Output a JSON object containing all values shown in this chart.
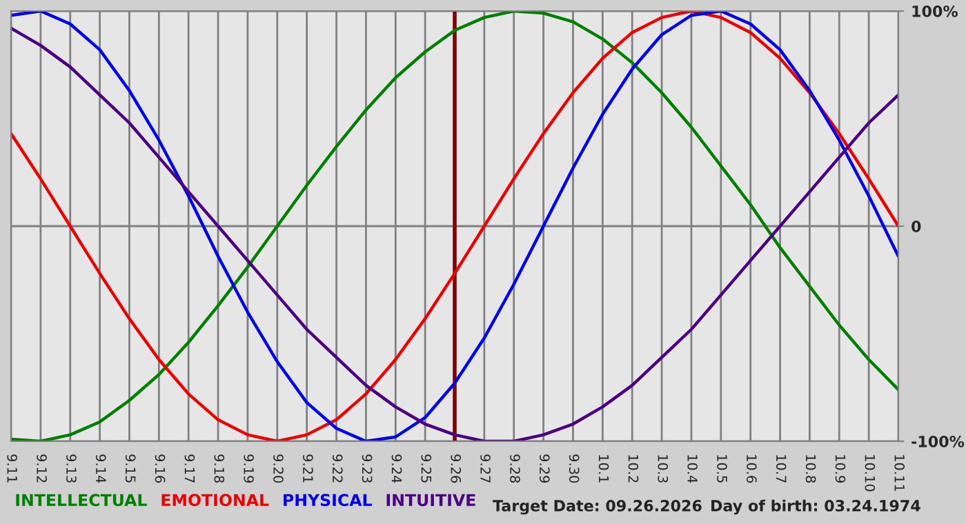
{
  "chart_data": {
    "type": "line",
    "categories": [
      "9.11",
      "9.12",
      "9.13",
      "9.14",
      "9.15",
      "9.16",
      "9.17",
      "9.18",
      "9.19",
      "9.20",
      "9.21",
      "9.22",
      "9.23",
      "9.24",
      "9.25",
      "9.26",
      "9.27",
      "9.28",
      "9.29",
      "9.30",
      "10.1",
      "10.2",
      "10.3",
      "10.4",
      "10.5",
      "10.6",
      "10.7",
      "10.8",
      "10.9",
      "10.10",
      "10.11"
    ],
    "series": [
      {
        "name": "INTELLECTUAL",
        "color": "#008000",
        "values": [
          -99,
          -100,
          -97,
          -91,
          -81,
          -69,
          -54,
          -37,
          -19,
          0,
          19,
          37,
          54,
          69,
          81,
          91,
          97,
          100,
          99,
          95,
          87,
          76,
          62,
          46,
          28,
          10,
          -10,
          -28,
          -46,
          -62,
          -76
        ]
      },
      {
        "name": "EMOTIONAL",
        "color": "#ee0000",
        "values": [
          43,
          22,
          0,
          -22,
          -43,
          -62,
          -78,
          -90,
          -97,
          -100,
          -97,
          -90,
          -78,
          -62,
          -43,
          -22,
          0,
          22,
          43,
          62,
          78,
          90,
          97,
          100,
          97,
          90,
          78,
          62,
          43,
          22,
          0
        ]
      },
      {
        "name": "PHYSICAL",
        "color": "#0000ee",
        "values": [
          98,
          100,
          94,
          82,
          63,
          40,
          14,
          -14,
          -40,
          -63,
          -82,
          -94,
          -100,
          -98,
          -89,
          -73,
          -52,
          -27,
          0,
          27,
          52,
          73,
          89,
          98,
          100,
          94,
          82,
          63,
          40,
          14,
          -14
        ]
      },
      {
        "name": "INTUITIVE",
        "color": "#4b0082",
        "values": [
          92,
          84,
          74,
          61,
          48,
          32,
          16,
          0,
          -16,
          -32,
          -48,
          -61,
          -74,
          -84,
          -92,
          -97,
          -100,
          -100,
          -97,
          -92,
          -84,
          -74,
          -61,
          -48,
          -32,
          -16,
          0,
          16,
          32,
          48,
          61
        ]
      }
    ],
    "ylim": [
      -100,
      100
    ],
    "yticks": [
      {
        "value": 100,
        "label": "100%"
      },
      0,
      {
        "value": -100,
        "label": "-100%"
      }
    ],
    "grid": true,
    "legend": "bottom",
    "ref_lines": [
      {
        "axis": "x",
        "value": "9.26",
        "color": "#800000"
      }
    ],
    "annotations": [
      "Target Date: 09.26.2026",
      "Day of birth: 03.24.1974"
    ]
  }
}
